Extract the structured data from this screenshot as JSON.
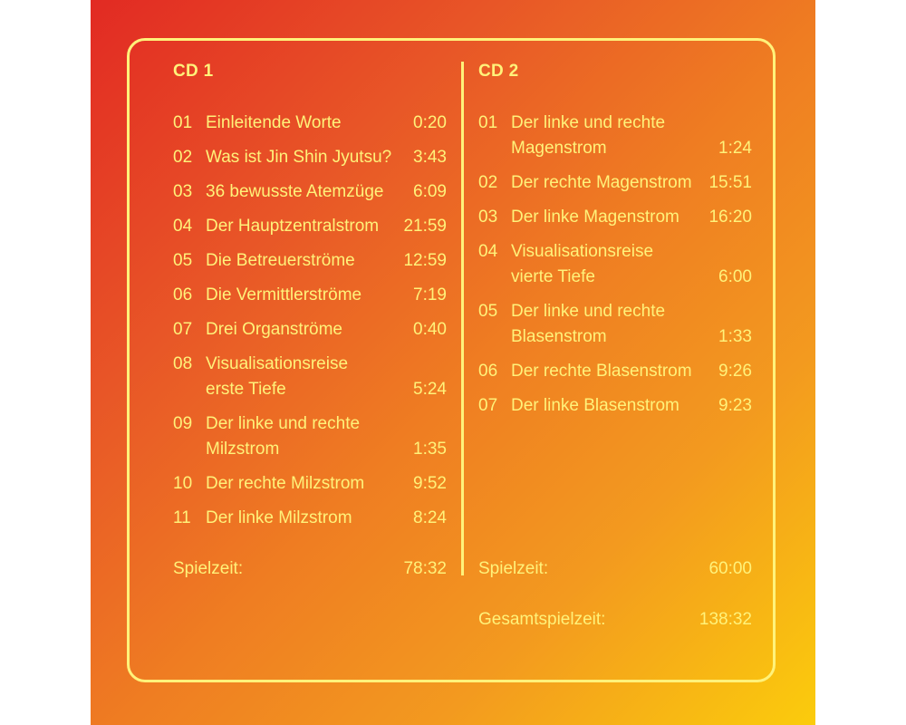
{
  "cd1": {
    "heading": "CD 1",
    "tracks": [
      {
        "num": "01",
        "title": "Einleitende Worte",
        "time": "0:20"
      },
      {
        "num": "02",
        "title": "Was ist Jin Shin Jyutsu?",
        "time": "3:43"
      },
      {
        "num": "03",
        "title": "36 bewusste Atemzüge",
        "time": "6:09"
      },
      {
        "num": "04",
        "title": "Der Hauptzentralstrom",
        "time": "21:59"
      },
      {
        "num": "05",
        "title": "Die Betreuerströme",
        "time": "12:59"
      },
      {
        "num": "06",
        "title": "Die Vermittlerströme",
        "time": "7:19"
      },
      {
        "num": "07",
        "title": "Drei Organströme",
        "time": "0:40"
      },
      {
        "num": "08",
        "title": "Visualisationsreise\nerste Tiefe",
        "time": "5:24"
      },
      {
        "num": "09",
        "title": "Der linke und rechte\nMilzstrom",
        "time": "1:35"
      },
      {
        "num": "10",
        "title": "Der rechte Milzstrom",
        "time": "9:52"
      },
      {
        "num": "11",
        "title": "Der linke Milzstrom",
        "time": "8:24"
      }
    ],
    "playtime_label": "Spielzeit:",
    "playtime_value": "78:32"
  },
  "cd2": {
    "heading": "CD 2",
    "tracks": [
      {
        "num": "01",
        "title": "Der linke und rechte\nMagenstrom",
        "time": "1:24"
      },
      {
        "num": "02",
        "title": "Der rechte Magenstrom",
        "time": "15:51"
      },
      {
        "num": "03",
        "title": "Der linke Magenstrom",
        "time": "16:20"
      },
      {
        "num": "04",
        "title": "Visualisationsreise\nvierte Tiefe",
        "time": "6:00"
      },
      {
        "num": "05",
        "title": "Der linke und rechte\nBlasenstrom",
        "time": "1:33"
      },
      {
        "num": "06",
        "title": "Der rechte Blasenstrom",
        "time": "9:26"
      },
      {
        "num": "07",
        "title": "Der linke Blasenstrom",
        "time": "9:23"
      }
    ],
    "playtime_label": "Spielzeit:",
    "playtime_value": "60:00",
    "total_label": "Gesamtspielzeit:",
    "total_value": "138:32"
  },
  "colors": {
    "text": "#fff27a",
    "gradient_start": "#e22a23",
    "gradient_end": "#fbcc0c"
  }
}
